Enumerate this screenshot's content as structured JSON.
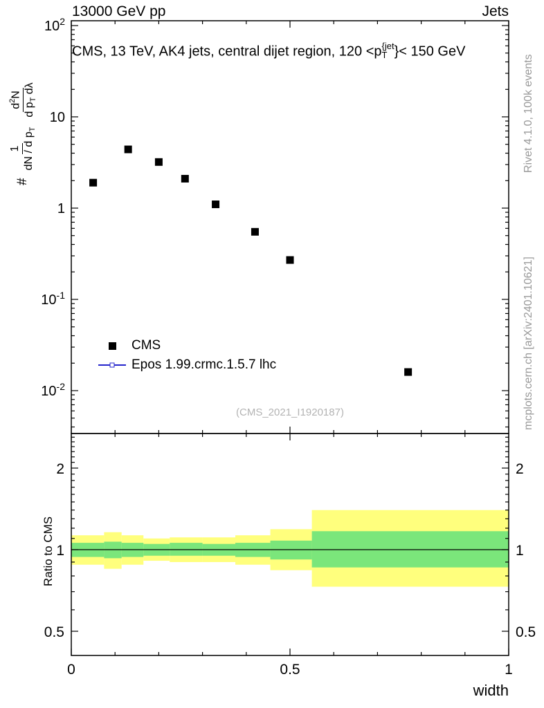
{
  "header": {
    "left": "13000 GeV pp",
    "right": "Jets"
  },
  "title": {
    "pre": "CMS, 13 TeV, AK4 jets, central dijet region, 120 <p",
    "sup": "{jet",
    "sub": "T",
    "post": "}< 150 GeV"
  },
  "ylabel_main": {
    "prefix": "#",
    "f1_num": "1",
    "f1_den_a": "dN / d p",
    "f1_den_sub": "T",
    "f2_num_a": "d",
    "f2_num_sup": "2",
    "f2_num_b": "N",
    "f2_den_a": "d p",
    "f2_den_sub": "T",
    "f2_den_b": " dλ"
  },
  "ratio_ylabel": "Ratio to CMS",
  "xlabel": "width",
  "main": {
    "watermark": "(CMS_2021_I1920187)"
  },
  "legend": [
    {
      "label": "CMS",
      "marker": "filled-black-square"
    },
    {
      "label": "Epos 1.99.crmc.1.5.7 lhc",
      "marker": "blue-line-open-square"
    }
  ],
  "side_notes": {
    "top": "Rivet 4.1.0, 100k events",
    "bottom": "mcplots.cern.ch [arXiv:2401.10621]"
  },
  "colors": {
    "band_yellow": "#ffff7d",
    "band_green": "#7be67b",
    "marker_black": "#000000",
    "mc_blue": "#2323cc",
    "gray_note": "#999999",
    "watermark_gray": "#b3b3b3"
  },
  "chart_data": [
    {
      "id": "main-panel",
      "type": "scatter",
      "title": "CMS, 13 TeV, AK4 jets, central dijet region, 120 < pT^{jet} < 150 GeV",
      "xlabel": "width",
      "ylabel": "# 1/(dN/dpT) d2N/(dpT dlambda)",
      "xlim": [
        0,
        1
      ],
      "ylog": true,
      "ylim": [
        0.0035,
        115
      ],
      "grid": false,
      "legend_position": "left-middle",
      "xticks_major": [
        0,
        0.5,
        1
      ],
      "xtick_labels": [
        "0",
        "0.5",
        "1"
      ],
      "xticks_minor": [
        0.1,
        0.2,
        0.3,
        0.4,
        0.6,
        0.7,
        0.8,
        0.9
      ],
      "ytick_decades": [
        {
          "value": 100,
          "base": "10",
          "exp": "2"
        },
        {
          "value": 10,
          "base": "10",
          "exp": ""
        },
        {
          "value": 1,
          "base": "1",
          "exp": ""
        },
        {
          "value": 0.1,
          "base": "10",
          "exp": "-1"
        },
        {
          "value": 0.01,
          "base": "10",
          "exp": "-2"
        }
      ],
      "series": [
        {
          "name": "CMS",
          "marker": "filled-black-square",
          "x": [
            0.05,
            0.13,
            0.2,
            0.26,
            0.33,
            0.42,
            0.5,
            0.77
          ],
          "y": [
            1.9,
            4.4,
            3.2,
            2.1,
            1.1,
            0.55,
            0.27,
            0.016
          ]
        },
        {
          "name": "Epos 1.99.crmc.1.5.7 lhc",
          "marker": "blue-line-open-square",
          "x": [],
          "y": []
        }
      ]
    },
    {
      "id": "ratio-panel",
      "type": "area",
      "ylabel": "Ratio to CMS",
      "ylog": true,
      "ylim": [
        0.41,
        2.66
      ],
      "reference_line_y": 1,
      "yticks_major": [
        {
          "value": 2,
          "label": "2"
        },
        {
          "value": 1,
          "label": "1"
        },
        {
          "value": 0.5,
          "label": "0.5"
        }
      ],
      "bands": [
        {
          "x0": 0.0,
          "x1": 0.075,
          "yellow_lo": 0.88,
          "yellow_hi": 1.13,
          "green_lo": 0.94,
          "green_hi": 1.06
        },
        {
          "x0": 0.075,
          "x1": 0.115,
          "yellow_lo": 0.85,
          "yellow_hi": 1.16,
          "green_lo": 0.93,
          "green_hi": 1.07
        },
        {
          "x0": 0.115,
          "x1": 0.165,
          "yellow_lo": 0.88,
          "yellow_hi": 1.13,
          "green_lo": 0.94,
          "green_hi": 1.06
        },
        {
          "x0": 0.165,
          "x1": 0.225,
          "yellow_lo": 0.91,
          "yellow_hi": 1.1,
          "green_lo": 0.95,
          "green_hi": 1.05
        },
        {
          "x0": 0.225,
          "x1": 0.3,
          "yellow_lo": 0.9,
          "yellow_hi": 1.11,
          "green_lo": 0.95,
          "green_hi": 1.06
        },
        {
          "x0": 0.3,
          "x1": 0.375,
          "yellow_lo": 0.9,
          "yellow_hi": 1.11,
          "green_lo": 0.95,
          "green_hi": 1.05
        },
        {
          "x0": 0.375,
          "x1": 0.455,
          "yellow_lo": 0.88,
          "yellow_hi": 1.13,
          "green_lo": 0.94,
          "green_hi": 1.06
        },
        {
          "x0": 0.455,
          "x1": 0.55,
          "yellow_lo": 0.84,
          "yellow_hi": 1.19,
          "green_lo": 0.92,
          "green_hi": 1.08
        },
        {
          "x0": 0.55,
          "x1": 1.0,
          "yellow_lo": 0.73,
          "yellow_hi": 1.4,
          "green_lo": 0.86,
          "green_hi": 1.17
        }
      ]
    }
  ]
}
